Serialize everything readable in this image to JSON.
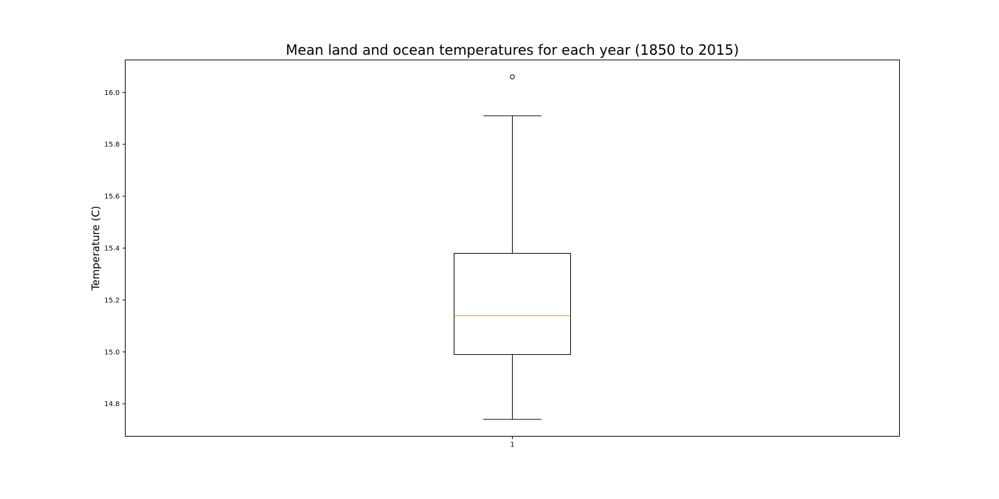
{
  "chart_data": {
    "type": "box",
    "title": "Mean land and ocean temperatures for each year (1850 to 2015)",
    "xlabel": "",
    "ylabel": "Temperature (C)",
    "categories": [
      "1"
    ],
    "boxes": [
      {
        "label": "1",
        "whisker_low": 14.74,
        "q1": 14.99,
        "median": 15.14,
        "q3": 15.38,
        "whisker_high": 15.91,
        "outliers": [
          16.06
        ]
      }
    ],
    "ylim": [
      14.675,
      16.125
    ],
    "yticks": [
      "14.8",
      "15.0",
      "15.2",
      "15.4",
      "15.6",
      "15.8",
      "16.0"
    ],
    "grid": false,
    "colors": {
      "box": "#000000",
      "median": "#ff7f0e"
    }
  }
}
